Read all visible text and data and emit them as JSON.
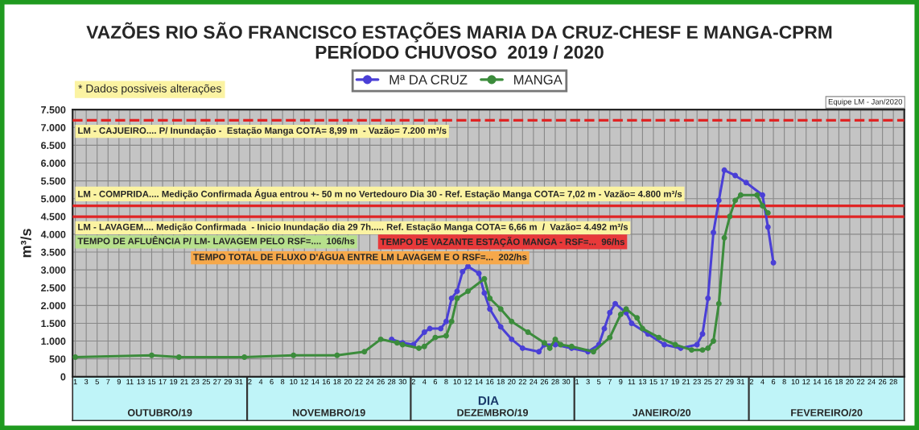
{
  "chart_data": {
    "type": "line",
    "title": "VAZÕES RIO SÃO FRANCISCO ESTAÇÕES MARIA DA CRUZ-CHESF E MANGA-CPRM",
    "subtitle": "PERÍODO CHUVOSO  2019 / 2020",
    "xlabel": "DIA",
    "ylabel": "m³/s",
    "series": [
      {
        "name": "Mª DA CRUZ",
        "color": "#4a3fd6",
        "x": [
          "2019-11-28",
          "2019-11-30",
          "2019-12-02",
          "2019-12-04",
          "2019-12-05",
          "2019-12-07",
          "2019-12-08",
          "2019-12-09",
          "2019-12-10",
          "2019-12-11",
          "2019-12-12",
          "2019-12-14",
          "2019-12-15",
          "2019-12-16",
          "2019-12-18",
          "2019-12-20",
          "2019-12-22",
          "2019-12-25",
          "2019-12-26",
          "2019-12-28",
          "2019-12-31",
          "2020-01-03",
          "2020-01-05",
          "2020-01-06",
          "2020-01-07",
          "2020-01-08",
          "2020-01-10",
          "2020-01-11",
          "2020-01-14",
          "2020-01-17",
          "2020-01-20",
          "2020-01-23",
          "2020-01-24",
          "2020-01-25",
          "2020-01-26",
          "2020-01-27",
          "2020-01-28",
          "2020-01-30",
          "2020-02-01",
          "2020-02-04",
          "2020-02-05",
          "2020-02-06"
        ],
        "values": [
          1050,
          950,
          900,
          1250,
          1350,
          1350,
          1550,
          2200,
          2400,
          2950,
          3100,
          2900,
          2350,
          1900,
          1400,
          1050,
          800,
          700,
          900,
          900,
          800,
          700,
          900,
          1350,
          1800,
          2050,
          1800,
          1500,
          1200,
          900,
          800,
          900,
          1200,
          2200,
          4050,
          4950,
          5800,
          5650,
          5450,
          5100,
          4200,
          3200
        ]
      },
      {
        "name": "MANGA",
        "color": "#3c8c3c",
        "x": [
          "2019-10-01",
          "2019-10-15",
          "2019-10-20",
          "2019-11-01",
          "2019-11-10",
          "2019-11-18",
          "2019-11-23",
          "2019-11-26",
          "2019-11-29",
          "2019-11-30",
          "2019-12-03",
          "2019-12-04",
          "2019-12-06",
          "2019-12-08",
          "2019-12-09",
          "2019-12-10",
          "2019-12-12",
          "2019-12-15",
          "2019-12-16",
          "2019-12-18",
          "2019-12-20",
          "2019-12-23",
          "2019-12-26",
          "2019-12-27",
          "2019-12-28",
          "2019-12-29",
          "2019-12-31",
          "2020-01-04",
          "2020-01-07",
          "2020-01-09",
          "2020-01-10",
          "2020-01-12",
          "2020-01-13",
          "2020-01-16",
          "2020-01-19",
          "2020-01-22",
          "2020-01-24",
          "2020-01-25",
          "2020-01-26",
          "2020-01-27",
          "2020-01-28",
          "2020-01-29",
          "2020-01-30",
          "2020-01-31",
          "2020-02-03",
          "2020-02-04",
          "2020-02-05"
        ],
        "values": [
          550,
          600,
          550,
          550,
          600,
          600,
          700,
          1050,
          950,
          900,
          800,
          850,
          1100,
          1150,
          1550,
          2200,
          2400,
          2750,
          2200,
          1900,
          1550,
          1250,
          950,
          800,
          1050,
          900,
          850,
          700,
          1100,
          1750,
          1900,
          1650,
          1350,
          1100,
          900,
          750,
          750,
          800,
          1000,
          2050,
          3900,
          4500,
          4950,
          5100,
          5100,
          4800,
          4600
        ]
      }
    ],
    "marker": "circle",
    "line_style": "solid",
    "legend": "top",
    "grid": true,
    "ylim": [
      0,
      7500
    ],
    "yticks": [
      {
        "value": 0,
        "label": "0"
      },
      {
        "value": 500,
        "label": "500"
      },
      {
        "value": 1000,
        "label": "1.000"
      },
      {
        "value": 1500,
        "label": "1.500"
      },
      {
        "value": 2000,
        "label": "2.000"
      },
      {
        "value": 2500,
        "label": "2.500"
      },
      {
        "value": 3000,
        "label": "3.000"
      },
      {
        "value": 3500,
        "label": "3.500"
      },
      {
        "value": 4000,
        "label": "4.000"
      },
      {
        "value": 4500,
        "label": "4.500"
      },
      {
        "value": 5000,
        "label": "5.000"
      },
      {
        "value": 5500,
        "label": "5.500"
      },
      {
        "value": 6000,
        "label": "6.000"
      },
      {
        "value": 6500,
        "label": "6.500"
      },
      {
        "value": 7000,
        "label": "7.000"
      },
      {
        "value": 7500,
        "label": "7.500"
      }
    ],
    "xlim": [
      "2019-09-30T12:00",
      "2020-03-01"
    ],
    "xticks": [
      {
        "value": "2019-10-01",
        "label": "1"
      },
      {
        "value": "2019-10-03",
        "label": "3"
      },
      {
        "value": "2019-10-05",
        "label": "5"
      },
      {
        "value": "2019-10-07",
        "label": "7"
      },
      {
        "value": "2019-10-09",
        "label": "9"
      },
      {
        "value": "2019-10-11",
        "label": "11"
      },
      {
        "value": "2019-10-13",
        "label": "13"
      },
      {
        "value": "2019-10-15",
        "label": "15"
      },
      {
        "value": "2019-10-17",
        "label": "17"
      },
      {
        "value": "2019-10-19",
        "label": "19"
      },
      {
        "value": "2019-10-21",
        "label": "21"
      },
      {
        "value": "2019-10-23",
        "label": "23"
      },
      {
        "value": "2019-10-25",
        "label": "25"
      },
      {
        "value": "2019-10-27",
        "label": "27"
      },
      {
        "value": "2019-10-29",
        "label": "29"
      },
      {
        "value": "2019-10-31",
        "label": "31"
      },
      {
        "value": "2019-11-02",
        "label": "2"
      },
      {
        "value": "2019-11-04",
        "label": "4"
      },
      {
        "value": "2019-11-06",
        "label": "6"
      },
      {
        "value": "2019-11-08",
        "label": "8"
      },
      {
        "value": "2019-11-10",
        "label": "10"
      },
      {
        "value": "2019-11-12",
        "label": "12"
      },
      {
        "value": "2019-11-14",
        "label": "14"
      },
      {
        "value": "2019-11-16",
        "label": "16"
      },
      {
        "value": "2019-11-18",
        "label": "18"
      },
      {
        "value": "2019-11-20",
        "label": "20"
      },
      {
        "value": "2019-11-22",
        "label": "22"
      },
      {
        "value": "2019-11-24",
        "label": "24"
      },
      {
        "value": "2019-11-26",
        "label": "26"
      },
      {
        "value": "2019-11-28",
        "label": "28"
      },
      {
        "value": "2019-11-30",
        "label": "30"
      },
      {
        "value": "2019-12-02",
        "label": "2"
      },
      {
        "value": "2019-12-04",
        "label": "4"
      },
      {
        "value": "2019-12-06",
        "label": "6"
      },
      {
        "value": "2019-12-08",
        "label": "8"
      },
      {
        "value": "2019-12-10",
        "label": "10"
      },
      {
        "value": "2019-12-12",
        "label": "12"
      },
      {
        "value": "2019-12-14",
        "label": "14"
      },
      {
        "value": "2019-12-16",
        "label": "16"
      },
      {
        "value": "2019-12-18",
        "label": "18"
      },
      {
        "value": "2019-12-20",
        "label": "20"
      },
      {
        "value": "2019-12-22",
        "label": "22"
      },
      {
        "value": "2019-12-24",
        "label": "24"
      },
      {
        "value": "2019-12-26",
        "label": "26"
      },
      {
        "value": "2019-12-28",
        "label": "28"
      },
      {
        "value": "2019-12-30",
        "label": "30"
      },
      {
        "value": "2020-01-01",
        "label": "1"
      },
      {
        "value": "2020-01-03",
        "label": "3"
      },
      {
        "value": "2020-01-05",
        "label": "5"
      },
      {
        "value": "2020-01-07",
        "label": "7"
      },
      {
        "value": "2020-01-09",
        "label": "9"
      },
      {
        "value": "2020-01-11",
        "label": "11"
      },
      {
        "value": "2020-01-13",
        "label": "13"
      },
      {
        "value": "2020-01-15",
        "label": "15"
      },
      {
        "value": "2020-01-17",
        "label": "17"
      },
      {
        "value": "2020-01-19",
        "label": "19"
      },
      {
        "value": "2020-01-21",
        "label": "21"
      },
      {
        "value": "2020-01-23",
        "label": "23"
      },
      {
        "value": "2020-01-25",
        "label": "25"
      },
      {
        "value": "2020-01-27",
        "label": "27"
      },
      {
        "value": "2020-01-29",
        "label": "29"
      },
      {
        "value": "2020-01-31",
        "label": "31"
      },
      {
        "value": "2020-02-02",
        "label": "2"
      },
      {
        "value": "2020-02-04",
        "label": "4"
      },
      {
        "value": "2020-02-06",
        "label": "6"
      },
      {
        "value": "2020-02-08",
        "label": "8"
      },
      {
        "value": "2020-02-10",
        "label": "10"
      },
      {
        "value": "2020-02-12",
        "label": "12"
      },
      {
        "value": "2020-02-14",
        "label": "14"
      },
      {
        "value": "2020-02-16",
        "label": "16"
      },
      {
        "value": "2020-02-18",
        "label": "18"
      },
      {
        "value": "2020-02-20",
        "label": "20"
      },
      {
        "value": "2020-02-22",
        "label": "22"
      },
      {
        "value": "2020-02-24",
        "label": "24"
      },
      {
        "value": "2020-02-26",
        "label": "26"
      },
      {
        "value": "2020-02-28",
        "label": "28"
      }
    ],
    "ref_lines": [
      {
        "axis": "y",
        "value": 7200,
        "label": "LM - CAJUEIRO.... P/ Inundação -  Estação Manga COTA= 8,99 m  - Vazão= 7.200 m³/s",
        "color": "#e02424",
        "line_style": "dashed"
      },
      {
        "axis": "y",
        "value": 4800,
        "label": "LM - COMPRIDA.... Medição Confirmada Água entrou +- 50 m no Vertedouro Dia 30 - Ref. Estação Manga COTA= 7,02 m - Vazão= 4.800 m³/s",
        "color": "#e02424",
        "line_style": "solid"
      },
      {
        "axis": "y",
        "value": 4492,
        "label": "LM - LAVAGEM.... Medição Confirmada  - Inicio Inundação dia 29 7h..... Ref. Estação Manga COTA= 6,66 m  /  Vazão= 4.492 m³/s",
        "color": "#e02424",
        "line_style": "solid"
      }
    ],
    "annotations": [
      "* Dados possiveis alterações",
      "Equipe LM - Jan/2020",
      "TEMPO DE AFLUÊNCIA P/ LM- LAVAGEM PELO RSF=....  106/hs",
      "TEMPO DE VAZANTE ESTAÇÃO MANGA - RSF=...  96/hs",
      "TEMPO TOTAL DE FLUXO D'ÁGUA ENTRE LM LAVAGEM E O RSF=...  202/hs",
      "OUTUBRO/19",
      "NOVEMBRO/19",
      "DEZEMBRO/19",
      "JANEIRO/20",
      "FEVEREIRO/20"
    ]
  }
}
